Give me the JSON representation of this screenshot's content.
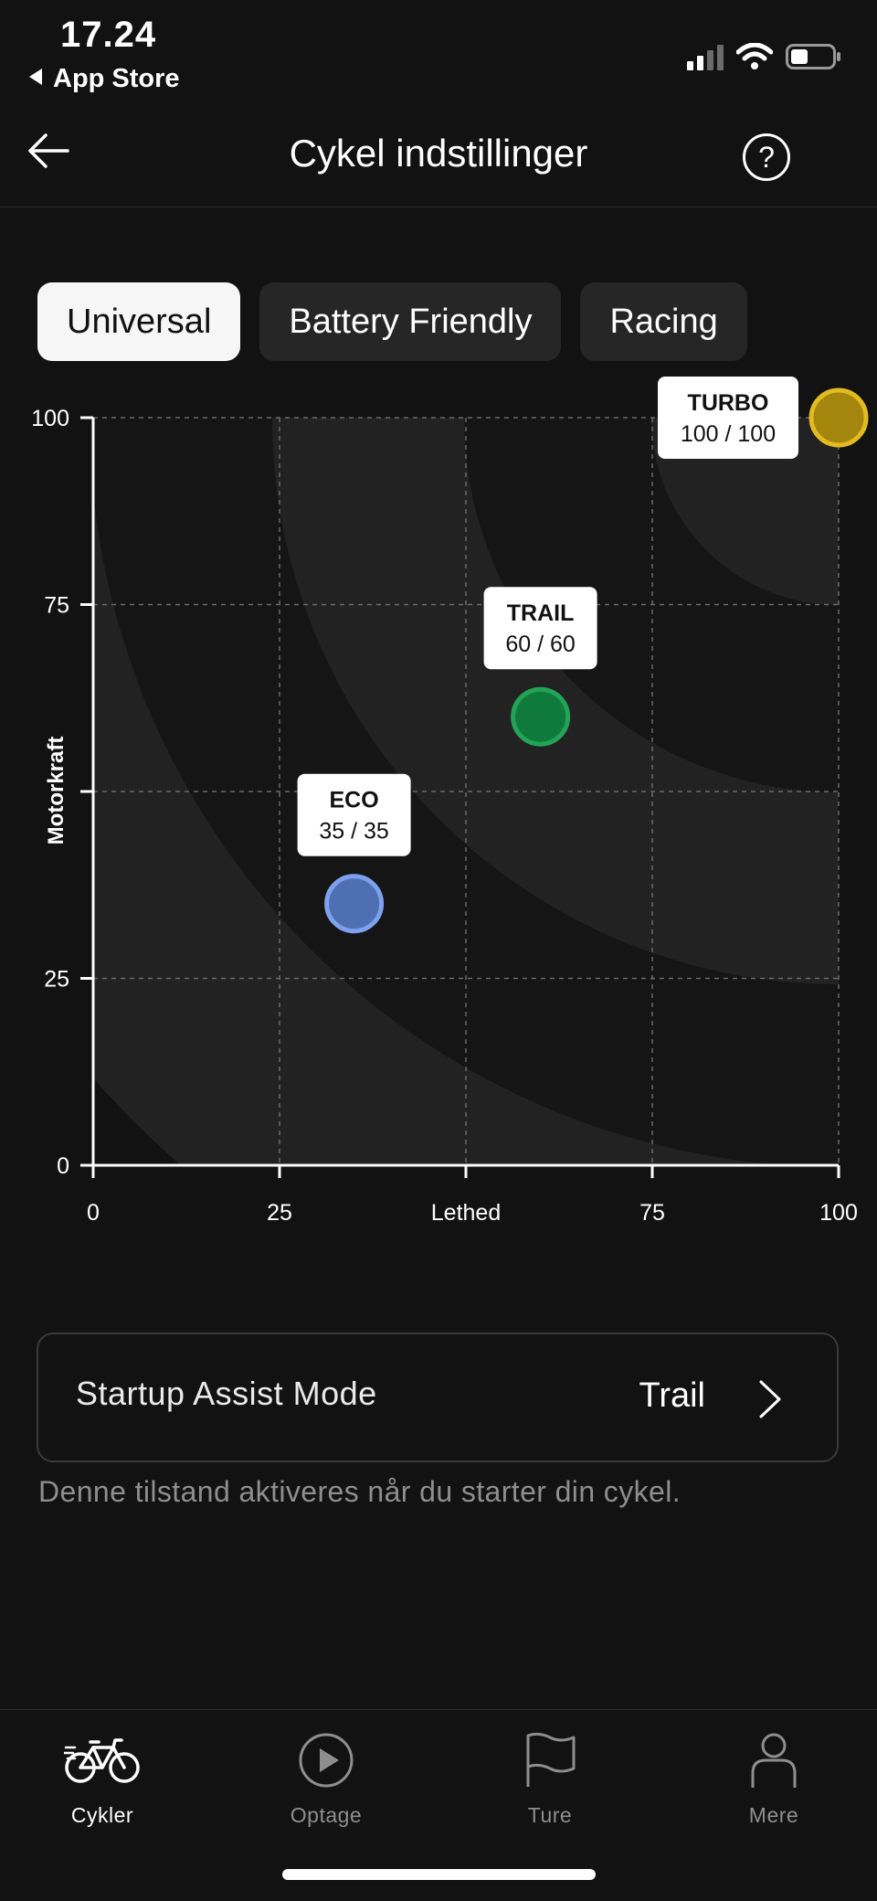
{
  "status_bar": {
    "time": "17.24",
    "back_app": "App Store"
  },
  "header": {
    "title": "Cykel indstillinger",
    "help_symbol": "?"
  },
  "tabs": [
    {
      "label": "Universal",
      "active": true
    },
    {
      "label": "Battery Friendly",
      "active": false
    },
    {
      "label": "Racing",
      "active": false
    }
  ],
  "chart_data": {
    "type": "scatter",
    "xlabel": "Lethed",
    "ylabel": "Motorkraft",
    "xlim": [
      0,
      100
    ],
    "ylim": [
      0,
      100
    ],
    "x_ticks": [
      "0",
      "25",
      "Lethed",
      "75",
      "100"
    ],
    "y_ticks": [
      "100",
      "75",
      "",
      "25",
      "0"
    ],
    "grid": true,
    "points": [
      {
        "name": "ECO",
        "x": 35,
        "y": 35,
        "label": "35 / 35",
        "color": "#4f6fb3",
        "ring": "#7ea1ef"
      },
      {
        "name": "TRAIL",
        "x": 60,
        "y": 60,
        "label": "60 / 60",
        "color": "#0f7a3c",
        "ring": "#22a356"
      },
      {
        "name": "TURBO",
        "x": 100,
        "y": 100,
        "label": "100 / 100",
        "color": "#a4860f",
        "ring": "#e2bb21"
      }
    ]
  },
  "startup": {
    "label": "Startup Assist Mode",
    "value": "Trail",
    "help": "Denne tilstand aktiveres når du starter din cykel."
  },
  "nav": [
    {
      "label": "Cykler",
      "icon": "bike-icon",
      "active": true
    },
    {
      "label": "Optage",
      "icon": "play-icon",
      "active": false
    },
    {
      "label": "Ture",
      "icon": "flag-icon",
      "active": false
    },
    {
      "label": "Mere",
      "icon": "person-icon",
      "active": false
    }
  ],
  "colors": {
    "background": "#121212",
    "accent": "#ffffff"
  }
}
